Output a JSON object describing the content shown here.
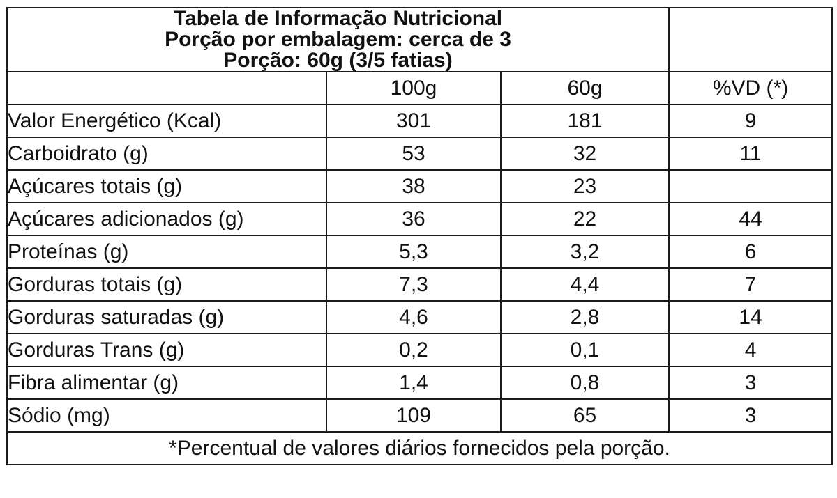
{
  "header": {
    "title": "Tabela de Informação Nutricional",
    "servings_per_package": "Porção por embalagem: cerca de 3",
    "serving_size": "Porção: 60g (3/5 fatias)"
  },
  "columns": [
    "",
    "100g",
    "60g",
    "%VD (*)"
  ],
  "rows": [
    {
      "name": "Valor Energético (Kcal)",
      "per100g": "301",
      "per60g": "181",
      "vd": "9"
    },
    {
      "name": "Carboidrato (g)",
      "per100g": "53",
      "per60g": "32",
      "vd": "11"
    },
    {
      "name": "Açúcares totais (g)",
      "per100g": "38",
      "per60g": "23",
      "vd": ""
    },
    {
      "name": "Açúcares adicionados (g)",
      "per100g": "36",
      "per60g": "22",
      "vd": "44"
    },
    {
      "name": "Proteínas (g)",
      "per100g": "5,3",
      "per60g": "3,2",
      "vd": "6"
    },
    {
      "name": "Gorduras totais (g)",
      "per100g": "7,3",
      "per60g": "4,4",
      "vd": "7"
    },
    {
      "name": "Gorduras saturadas (g)",
      "per100g": "4,6",
      "per60g": "2,8",
      "vd": "14"
    },
    {
      "name": "Gorduras Trans (g)",
      "per100g": "0,2",
      "per60g": "0,1",
      "vd": "4"
    },
    {
      "name": "Fibra alimentar (g)",
      "per100g": "1,4",
      "per60g": "0,8",
      "vd": "3"
    },
    {
      "name": "Sódio (mg)",
      "per100g": "109",
      "per60g": "65",
      "vd": "3"
    }
  ],
  "footnote": "*Percentual de valores diários fornecidos pela porção."
}
